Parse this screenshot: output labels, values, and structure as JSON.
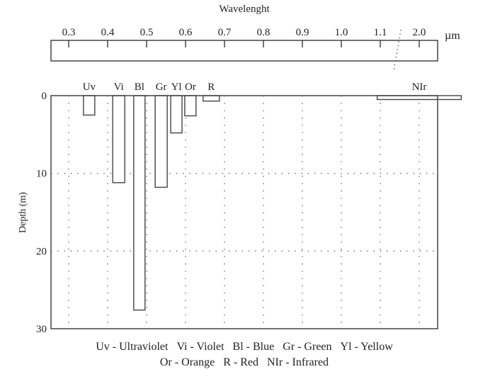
{
  "chart_data": {
    "type": "bar",
    "title": "Wavelenght",
    "x_unit": "µm",
    "ylabel": "Depth (m)",
    "ylim": [
      0,
      30
    ],
    "y_ticks": [
      "0",
      "10",
      "20",
      "30"
    ],
    "y_tick_values": [
      0,
      10,
      20,
      30
    ],
    "x_ticks": [
      "0.3",
      "0.4",
      "0.5",
      "0.6",
      "0.7",
      "0.8",
      "0.9",
      "1.0",
      "1.1",
      "2.0"
    ],
    "x_tick_values": [
      0.3,
      0.4,
      0.5,
      0.6,
      0.7,
      0.8,
      0.9,
      1.0,
      1.1,
      2.0
    ],
    "axis_break_between": [
      1.1,
      2.0
    ],
    "grid": true,
    "bars": [
      {
        "label": "Uv",
        "wl_from": 0.338,
        "wl_to": 0.367,
        "depth": 2.5
      },
      {
        "label": "Vi",
        "wl_from": 0.413,
        "wl_to": 0.444,
        "depth": 11.2
      },
      {
        "label": "Bl",
        "wl_from": 0.467,
        "wl_to": 0.496,
        "depth": 27.6
      },
      {
        "label": "Gr",
        "wl_from": 0.522,
        "wl_to": 0.553,
        "depth": 11.8
      },
      {
        "label": "Yl",
        "wl_from": 0.562,
        "wl_to": 0.591,
        "depth": 4.8
      },
      {
        "label": "Or",
        "wl_from": 0.598,
        "wl_to": 0.627,
        "depth": 2.6
      },
      {
        "label": "R",
        "wl_from": 0.645,
        "wl_to": 0.687,
        "depth": 0.7
      },
      {
        "label": "NIr",
        "wl_from": 1.96,
        "wl_to": 2.04,
        "depth": 0.5
      }
    ],
    "legend": {
      "line1": [
        "Uv - Ultraviolet",
        "Vi - Violet",
        "Bl - Blue",
        "Gr - Green",
        "Yl - Yellow"
      ],
      "line2": [
        "Or - Orange",
        "R - Red",
        "NIr - Infrared"
      ]
    }
  }
}
